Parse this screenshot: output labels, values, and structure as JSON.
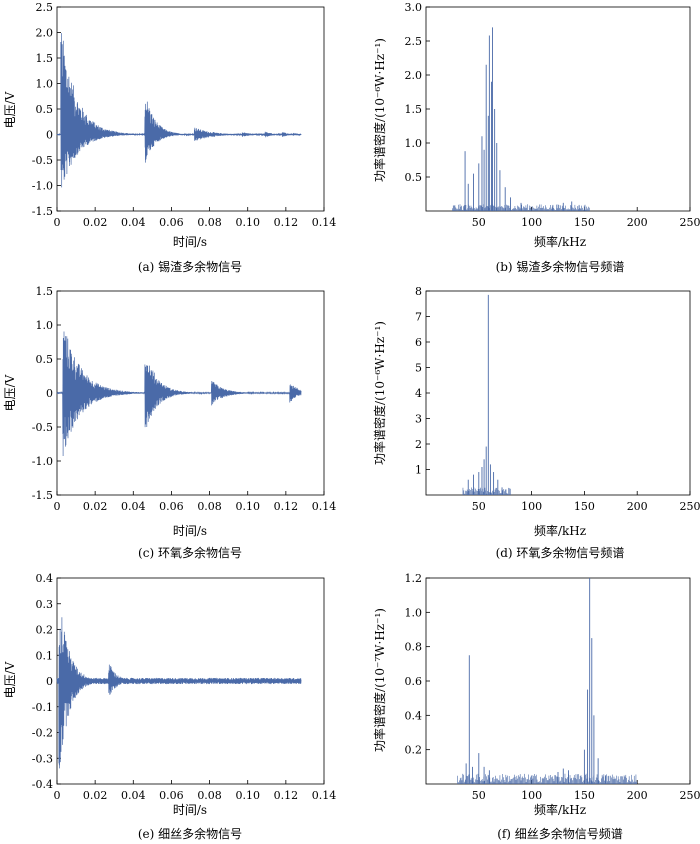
{
  "colors": {
    "signal": "#4a6aa8",
    "axis": "#000000"
  },
  "chart_data": [
    {
      "type": "line",
      "caption": "(a) 锡渣多余物信号",
      "xlabel": "时间/s",
      "ylabel": "电压/V",
      "xlim": [
        0,
        0.14
      ],
      "ylim": [
        -1.5,
        2.5
      ],
      "xticks": [
        "0",
        "0.02",
        "0.04",
        "0.06",
        "0.08",
        "0.10",
        "0.12",
        "0.14"
      ],
      "yticks": [
        "-1.5",
        "-1.0",
        "-0.5",
        "0",
        "0.5",
        "1.0",
        "1.5",
        "2.0",
        "2.5"
      ],
      "bursts": [
        {
          "t": 0.002,
          "amp": 2.2,
          "neg": -1.2,
          "decay": 0.008
        },
        {
          "t": 0.046,
          "amp": 0.9,
          "neg": -0.6,
          "decay": 0.005
        },
        {
          "t": 0.072,
          "amp": 0.15,
          "neg": -0.15,
          "decay": 0.008
        },
        {
          "t": 0.082,
          "amp": 0.05,
          "neg": -0.05,
          "decay": 0.004
        },
        {
          "t": 0.097,
          "amp": 0.05,
          "neg": -0.05,
          "decay": 0.005
        },
        {
          "t": 0.109,
          "amp": 0.06,
          "neg": -0.06,
          "decay": 0.004
        },
        {
          "t": 0.118,
          "amp": 0.05,
          "neg": -0.05,
          "decay": 0.004
        }
      ],
      "t_end": 0.128
    },
    {
      "type": "bar",
      "caption": "(b) 锡渣多余物信号频谱",
      "xlabel": "频率/kHz",
      "ylabel": "功率谱密度/(10⁻⁶W·Hz⁻¹)",
      "xlim": [
        0,
        250
      ],
      "ylim": [
        0,
        3.0
      ],
      "xticks": [
        "50",
        "100",
        "150",
        "200",
        "250"
      ],
      "yticks": [
        "0.5",
        "1.0",
        "1.5",
        "2.0",
        "2.5",
        "3.0"
      ],
      "peaks": [
        {
          "f": 37,
          "v": 0.88
        },
        {
          "f": 40,
          "v": 0.4
        },
        {
          "f": 45,
          "v": 0.55
        },
        {
          "f": 50,
          "v": 0.7
        },
        {
          "f": 53,
          "v": 1.1
        },
        {
          "f": 55,
          "v": 0.9
        },
        {
          "f": 57,
          "v": 2.15
        },
        {
          "f": 59,
          "v": 1.4
        },
        {
          "f": 60,
          "v": 2.58
        },
        {
          "f": 62,
          "v": 1.9
        },
        {
          "f": 63,
          "v": 2.7
        },
        {
          "f": 65,
          "v": 1.5
        },
        {
          "f": 67,
          "v": 1.0
        },
        {
          "f": 70,
          "v": 0.6
        },
        {
          "f": 75,
          "v": 0.35
        },
        {
          "f": 80,
          "v": 0.2
        },
        {
          "f": 90,
          "v": 0.12
        },
        {
          "f": 120,
          "v": 0.08
        },
        {
          "f": 130,
          "v": 0.12
        },
        {
          "f": 138,
          "v": 0.14
        },
        {
          "f": 145,
          "v": 0.08
        }
      ],
      "noise_floor": 0.05,
      "band": [
        25,
        155
      ]
    },
    {
      "type": "line",
      "caption": "(c) 环氧多余物信号",
      "xlabel": "时间/s",
      "ylabel": "电压/V",
      "xlim": [
        0,
        0.14
      ],
      "ylim": [
        -1.5,
        1.5
      ],
      "xticks": [
        "0",
        "0.02",
        "0.04",
        "0.06",
        "0.08",
        "0.10",
        "0.12",
        "0.14"
      ],
      "yticks": [
        "-1.5",
        "-1.0",
        "-0.5",
        "0",
        "0.5",
        "1.0",
        "1.5"
      ],
      "bursts": [
        {
          "t": 0.003,
          "amp": 1.1,
          "neg": -0.95,
          "decay": 0.009
        },
        {
          "t": 0.046,
          "amp": 0.7,
          "neg": -0.6,
          "decay": 0.006
        },
        {
          "t": 0.081,
          "amp": 0.2,
          "neg": -0.2,
          "decay": 0.006
        },
        {
          "t": 0.122,
          "amp": 0.2,
          "neg": -0.15,
          "decay": 0.004
        }
      ],
      "t_end": 0.128
    },
    {
      "type": "bar",
      "caption": "(d) 环氧多余物信号频谱",
      "xlabel": "频率/kHz",
      "ylabel": "功率谱密度/(10⁻⁶W·Hz⁻¹)",
      "xlim": [
        0,
        250
      ],
      "ylim": [
        0,
        8
      ],
      "xticks": [
        "50",
        "100",
        "150",
        "200",
        "250"
      ],
      "yticks": [
        "1",
        "2",
        "3",
        "4",
        "5",
        "6",
        "7",
        "8"
      ],
      "peaks": [
        {
          "f": 40,
          "v": 0.6
        },
        {
          "f": 45,
          "v": 0.8
        },
        {
          "f": 50,
          "v": 0.9
        },
        {
          "f": 53,
          "v": 1.1
        },
        {
          "f": 55,
          "v": 1.4
        },
        {
          "f": 57,
          "v": 1.9
        },
        {
          "f": 59,
          "v": 7.85
        },
        {
          "f": 61,
          "v": 1.2
        },
        {
          "f": 64,
          "v": 0.9
        },
        {
          "f": 68,
          "v": 0.6
        },
        {
          "f": 72,
          "v": 0.3
        }
      ],
      "noise_floor": 0.15,
      "band": [
        35,
        80
      ]
    },
    {
      "type": "line",
      "caption": "(e) 细丝多余物信号",
      "xlabel": "时间/s",
      "ylabel": "电压/V",
      "xlim": [
        0,
        0.14
      ],
      "ylim": [
        -0.4,
        0.4
      ],
      "xticks": [
        "0",
        "0.02",
        "0.04",
        "0.06",
        "0.08",
        "0.10",
        "0.12",
        "0.14"
      ],
      "yticks": [
        "-0.4",
        "-0.3",
        "-0.2",
        "-0.1",
        "0",
        "0.1",
        "0.2",
        "0.3",
        "0.4"
      ],
      "bursts": [
        {
          "t": 0.001,
          "amp": 0.36,
          "neg": -0.38,
          "decay": 0.005
        },
        {
          "t": 0.027,
          "amp": 0.08,
          "neg": -0.07,
          "decay": 0.004
        }
      ],
      "t_end": 0.128,
      "floor": 0.012
    },
    {
      "type": "bar",
      "caption": "(f) 细丝多余物信号频谱",
      "xlabel": "频率/kHz",
      "ylabel": "功率谱密度/(10⁻⁷W·Hz⁻¹)",
      "xlim": [
        0,
        250
      ],
      "ylim": [
        0,
        1.2
      ],
      "xticks": [
        "50",
        "100",
        "150",
        "200",
        "250"
      ],
      "yticks": [
        "0.2",
        "0.4",
        "0.6",
        "0.8",
        "1.0",
        "1.2"
      ],
      "peaks": [
        {
          "f": 38,
          "v": 0.12
        },
        {
          "f": 41,
          "v": 0.75
        },
        {
          "f": 44,
          "v": 0.1
        },
        {
          "f": 50,
          "v": 0.18
        },
        {
          "f": 55,
          "v": 0.1
        },
        {
          "f": 60,
          "v": 0.08
        },
        {
          "f": 125,
          "v": 0.07
        },
        {
          "f": 130,
          "v": 0.09
        },
        {
          "f": 135,
          "v": 0.08
        },
        {
          "f": 150,
          "v": 0.2
        },
        {
          "f": 153,
          "v": 0.55
        },
        {
          "f": 155,
          "v": 1.2
        },
        {
          "f": 157,
          "v": 0.85
        },
        {
          "f": 159,
          "v": 0.4
        },
        {
          "f": 163,
          "v": 0.15
        },
        {
          "f": 170,
          "v": 0.05
        }
      ],
      "noise_floor": 0.03,
      "band": [
        30,
        200
      ]
    }
  ]
}
